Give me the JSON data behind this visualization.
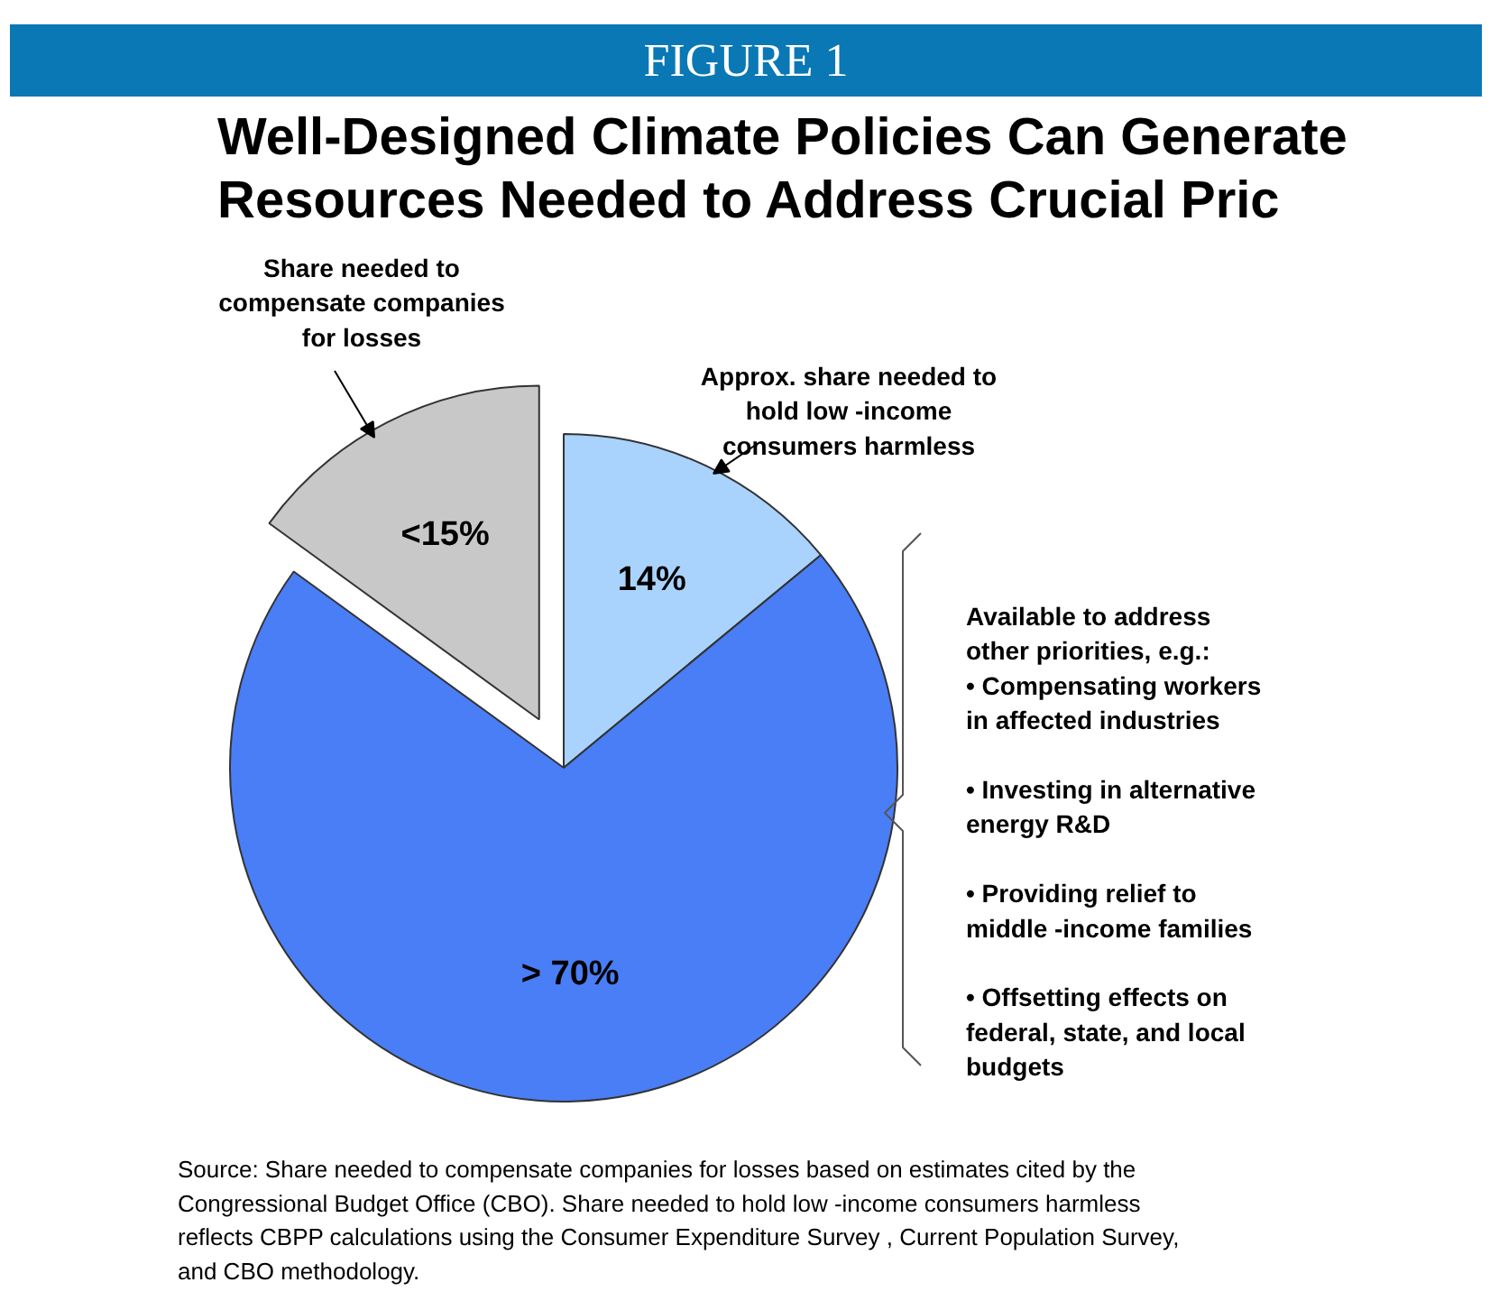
{
  "chart_data": {
    "type": "pie",
    "title": "FIGURE 1",
    "subtitle": "Well-Designed Climate Policies Can Generate\nResources Needed to Address Crucial Pric",
    "categories": [
      "Approx. share needed to\nhold low -income\nconsumers harmless",
      "Available to address\nother priorities, e.g.:\n• Compensating workers\n   in affected industries\n\n• Investing in alternative\n   energy R&D\n\n• Providing relief to\n   middle -income families\n\n• Offsetting effects on\n   federal, state, and local\n   budgets",
      "Share needed to\ncompensate companies\nfor losses"
    ],
    "values": [
      14,
      71,
      15
    ],
    "value_labels": [
      "14%",
      "> 70%",
      "<15%"
    ],
    "colors": [
      "#a9d3fd",
      "#4a7ef6",
      "#c8c8c8"
    ],
    "annotations": [
      "Source: Share needed to compensate companies for losses based on  estimates cited by the\nCongressional Budget Office (CBO).  Share needed to hold low -income consumers harmless\nreflects CBPP calculations using the Consumer Expenditure Survey , Current Population Survey,\nand CBO methodology."
    ]
  }
}
